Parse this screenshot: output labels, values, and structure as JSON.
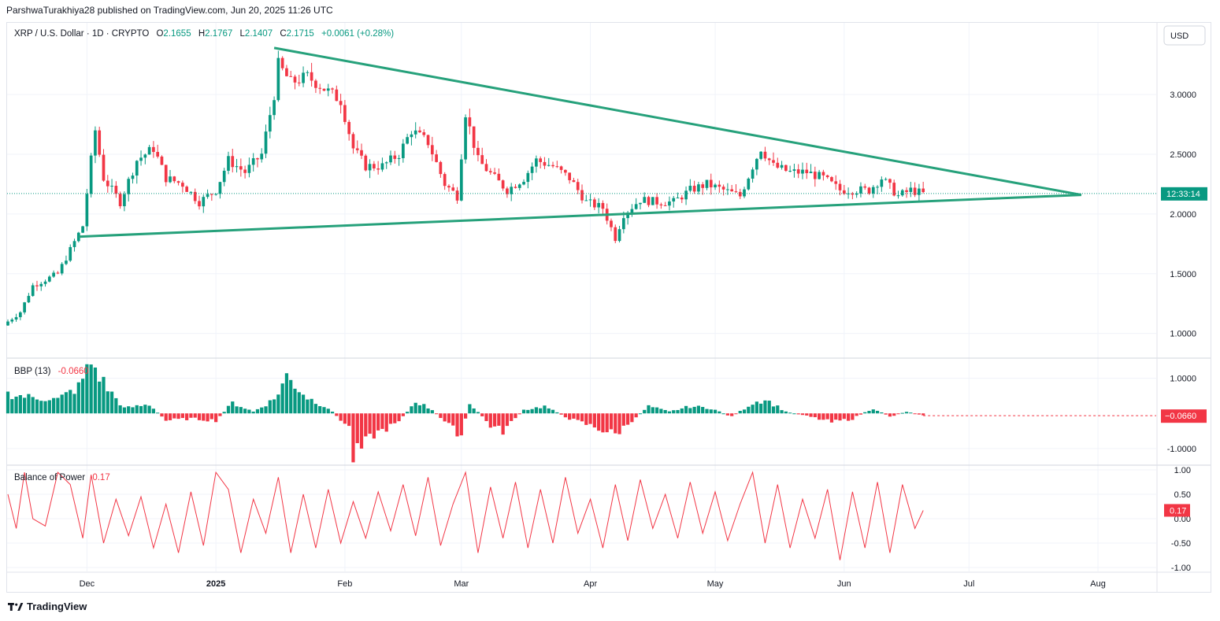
{
  "header": {
    "publisher_line": "ParshwaTurakhiya28 published on TradingView.com, Jun 20, 2025 11:26 UTC"
  },
  "legend": {
    "symbol": "XRP / U.S. Dollar · 1D · CRYPTO",
    "o_label": "O",
    "o_value": "2.1655",
    "h_label": "H",
    "h_value": "2.1767",
    "l_label": "L",
    "l_value": "2.1407",
    "c_label": "C",
    "c_value": "2.1715",
    "change": "+0.0061 (+0.28%)"
  },
  "currency_button": "USD",
  "countdown_label": "12:33:14",
  "bbp": {
    "title": "BBP (13)",
    "value": "-0.0660",
    "badge": "−0.0660"
  },
  "bop": {
    "title": "Balance of Power",
    "value": "0.17",
    "badge": "0.17"
  },
  "footer": {
    "brand": "TradingView"
  },
  "colors": {
    "up": "#089981",
    "down": "#f23645",
    "trend": "#26a17b",
    "bop_line": "#f23645",
    "price_line": "#089981"
  },
  "chart_data": [
    {
      "type": "candlestick",
      "title": "XRP / U.S. Dollar · 1D · CRYPTO",
      "x_range": [
        "2024-11-12",
        "2025-08-15"
      ],
      "x_tick_labels": [
        "Dec",
        "2025",
        "Feb",
        "Mar",
        "Apr",
        "May",
        "Jun",
        "Jul",
        "Aug"
      ],
      "x_tick_dates": [
        "2024-12-01",
        "2025-01-01",
        "2025-02-01",
        "2025-03-01",
        "2025-04-01",
        "2025-05-01",
        "2025-06-01",
        "2025-07-01",
        "2025-08-01"
      ],
      "y_ticks": [
        "1.0000",
        "1.5000",
        "2.0000",
        "2.5000",
        "3.0000"
      ],
      "ylim": [
        0.8,
        3.6
      ],
      "last_price": 2.1715,
      "grid": true,
      "candles_close_approx": [
        {
          "x": "2024-11-12",
          "close": 1.1
        },
        {
          "x": "2024-11-15",
          "close": 1.18
        },
        {
          "x": "2024-11-18",
          "close": 1.4
        },
        {
          "x": "2024-11-21",
          "close": 1.45
        },
        {
          "x": "2024-11-24",
          "close": 1.5
        },
        {
          "x": "2024-11-27",
          "close": 1.7
        },
        {
          "x": "2024-11-30",
          "close": 1.9
        },
        {
          "x": "2024-12-02",
          "close": 2.45
        },
        {
          "x": "2024-12-03",
          "close": 2.7
        },
        {
          "x": "2024-12-05",
          "close": 2.3
        },
        {
          "x": "2024-12-09",
          "close": 2.1
        },
        {
          "x": "2024-12-13",
          "close": 2.45
        },
        {
          "x": "2024-12-17",
          "close": 2.55
        },
        {
          "x": "2024-12-20",
          "close": 2.3
        },
        {
          "x": "2024-12-24",
          "close": 2.25
        },
        {
          "x": "2024-12-28",
          "close": 2.1
        },
        {
          "x": "2025-01-01",
          "close": 2.2
        },
        {
          "x": "2025-01-04",
          "close": 2.45
        },
        {
          "x": "2025-01-08",
          "close": 2.35
        },
        {
          "x": "2025-01-12",
          "close": 2.5
        },
        {
          "x": "2025-01-15",
          "close": 3.0
        },
        {
          "x": "2025-01-16",
          "close": 3.25
        },
        {
          "x": "2025-01-19",
          "close": 3.1
        },
        {
          "x": "2025-01-23",
          "close": 3.15
        },
        {
          "x": "2025-01-27",
          "close": 3.05
        },
        {
          "x": "2025-01-31",
          "close": 2.95
        },
        {
          "x": "2025-02-03",
          "close": 2.55
        },
        {
          "x": "2025-02-06",
          "close": 2.4
        },
        {
          "x": "2025-02-10",
          "close": 2.4
        },
        {
          "x": "2025-02-14",
          "close": 2.5
        },
        {
          "x": "2025-02-17",
          "close": 2.7
        },
        {
          "x": "2025-02-21",
          "close": 2.6
        },
        {
          "x": "2025-02-25",
          "close": 2.25
        },
        {
          "x": "2025-02-28",
          "close": 2.15
        },
        {
          "x": "2025-03-02",
          "close": 2.85
        },
        {
          "x": "2025-03-05",
          "close": 2.45
        },
        {
          "x": "2025-03-09",
          "close": 2.3
        },
        {
          "x": "2025-03-12",
          "close": 2.2
        },
        {
          "x": "2025-03-16",
          "close": 2.3
        },
        {
          "x": "2025-03-19",
          "close": 2.45
        },
        {
          "x": "2025-03-23",
          "close": 2.4
        },
        {
          "x": "2025-03-27",
          "close": 2.3
        },
        {
          "x": "2025-03-31",
          "close": 2.1
        },
        {
          "x": "2025-04-04",
          "close": 2.05
        },
        {
          "x": "2025-04-07",
          "close": 1.8
        },
        {
          "x": "2025-04-09",
          "close": 2.0
        },
        {
          "x": "2025-04-13",
          "close": 2.12
        },
        {
          "x": "2025-04-17",
          "close": 2.1
        },
        {
          "x": "2025-04-21",
          "close": 2.1
        },
        {
          "x": "2025-04-25",
          "close": 2.2
        },
        {
          "x": "2025-04-29",
          "close": 2.25
        },
        {
          "x": "2025-05-03",
          "close": 2.2
        },
        {
          "x": "2025-05-07",
          "close": 2.15
        },
        {
          "x": "2025-05-10",
          "close": 2.4
        },
        {
          "x": "2025-05-12",
          "close": 2.55
        },
        {
          "x": "2025-05-15",
          "close": 2.4
        },
        {
          "x": "2025-05-19",
          "close": 2.35
        },
        {
          "x": "2025-05-23",
          "close": 2.35
        },
        {
          "x": "2025-05-27",
          "close": 2.3
        },
        {
          "x": "2025-05-31",
          "close": 2.2
        },
        {
          "x": "2025-06-04",
          "close": 2.2
        },
        {
          "x": "2025-06-07",
          "close": 2.2
        },
        {
          "x": "2025-06-10",
          "close": 2.3
        },
        {
          "x": "2025-06-14",
          "close": 2.15
        },
        {
          "x": "2025-06-17",
          "close": 2.2
        },
        {
          "x": "2025-06-20",
          "close": 2.17
        }
      ],
      "trendlines": [
        {
          "name": "resistance",
          "from": {
            "x": "2025-01-15",
            "y": 3.39
          },
          "to": {
            "x": "2025-07-28",
            "y": 2.16
          }
        },
        {
          "name": "support",
          "from": {
            "x": "2024-11-29",
            "y": 1.81
          },
          "to": {
            "x": "2025-07-28",
            "y": 2.16
          }
        }
      ]
    },
    {
      "type": "bar",
      "title": "BBP (13)",
      "y_ticks": [
        "1.0000",
        "-1.0000"
      ],
      "ylim": [
        -1.45,
        1.55
      ],
      "last_value": -0.066,
      "values_approx": [
        {
          "x": "2024-11-12",
          "y": 0.55
        },
        {
          "x": "2024-11-18",
          "y": 0.45
        },
        {
          "x": "2024-11-24",
          "y": 0.4
        },
        {
          "x": "2024-11-29",
          "y": 0.75
        },
        {
          "x": "2024-12-02",
          "y": 1.45
        },
        {
          "x": "2024-12-06",
          "y": 0.7
        },
        {
          "x": "2024-12-10",
          "y": 0.15
        },
        {
          "x": "2024-12-16",
          "y": 0.25
        },
        {
          "x": "2024-12-20",
          "y": -0.2
        },
        {
          "x": "2024-12-26",
          "y": -0.15
        },
        {
          "x": "2025-01-01",
          "y": -0.2
        },
        {
          "x": "2025-01-05",
          "y": 0.3
        },
        {
          "x": "2025-01-10",
          "y": 0.05
        },
        {
          "x": "2025-01-15",
          "y": 0.4
        },
        {
          "x": "2025-01-18",
          "y": 1.05
        },
        {
          "x": "2025-01-23",
          "y": 0.45
        },
        {
          "x": "2025-01-28",
          "y": 0.15
        },
        {
          "x": "2025-02-02",
          "y": -0.4
        },
        {
          "x": "2025-02-03",
          "y": -1.25
        },
        {
          "x": "2025-02-08",
          "y": -0.6
        },
        {
          "x": "2025-02-14",
          "y": -0.25
        },
        {
          "x": "2025-02-18",
          "y": 0.35
        },
        {
          "x": "2025-02-22",
          "y": 0.1
        },
        {
          "x": "2025-02-27",
          "y": -0.45
        },
        {
          "x": "2025-03-01",
          "y": -0.6
        },
        {
          "x": "2025-03-03",
          "y": 0.3
        },
        {
          "x": "2025-03-08",
          "y": -0.35
        },
        {
          "x": "2025-03-11",
          "y": -0.5
        },
        {
          "x": "2025-03-16",
          "y": 0.1
        },
        {
          "x": "2025-03-21",
          "y": 0.2
        },
        {
          "x": "2025-03-27",
          "y": -0.15
        },
        {
          "x": "2025-04-01",
          "y": -0.35
        },
        {
          "x": "2025-04-07",
          "y": -0.6
        },
        {
          "x": "2025-04-10",
          "y": -0.3
        },
        {
          "x": "2025-04-15",
          "y": 0.2
        },
        {
          "x": "2025-04-20",
          "y": 0.05
        },
        {
          "x": "2025-04-25",
          "y": 0.2
        },
        {
          "x": "2025-04-30",
          "y": 0.15
        },
        {
          "x": "2025-05-05",
          "y": -0.1
        },
        {
          "x": "2025-05-10",
          "y": 0.3
        },
        {
          "x": "2025-05-13",
          "y": 0.4
        },
        {
          "x": "2025-05-18",
          "y": 0.05
        },
        {
          "x": "2025-05-24",
          "y": -0.1
        },
        {
          "x": "2025-05-29",
          "y": -0.25
        },
        {
          "x": "2025-06-03",
          "y": -0.15
        },
        {
          "x": "2025-06-08",
          "y": 0.15
        },
        {
          "x": "2025-06-12",
          "y": -0.1
        },
        {
          "x": "2025-06-16",
          "y": 0.05
        },
        {
          "x": "2025-06-20",
          "y": -0.07
        }
      ]
    },
    {
      "type": "line",
      "title": "Balance of Power",
      "y_ticks": [
        "1.00",
        "0.50",
        "0.00",
        "-0.50",
        "-1.00"
      ],
      "ylim": [
        -1.08,
        1.08
      ],
      "last_value": 0.17,
      "values_approx": [
        {
          "x": "2024-11-12",
          "y": 0.5
        },
        {
          "x": "2024-11-14",
          "y": -0.2
        },
        {
          "x": "2024-11-16",
          "y": 0.95
        },
        {
          "x": "2024-11-18",
          "y": 0.0
        },
        {
          "x": "2024-11-21",
          "y": -0.15
        },
        {
          "x": "2024-11-24",
          "y": 0.95
        },
        {
          "x": "2024-11-27",
          "y": 0.7
        },
        {
          "x": "2024-11-30",
          "y": -0.4
        },
        {
          "x": "2024-12-02",
          "y": 0.9
        },
        {
          "x": "2024-12-05",
          "y": -0.5
        },
        {
          "x": "2024-12-08",
          "y": 0.4
        },
        {
          "x": "2024-12-11",
          "y": -0.35
        },
        {
          "x": "2024-12-14",
          "y": 0.45
        },
        {
          "x": "2024-12-17",
          "y": -0.6
        },
        {
          "x": "2024-12-20",
          "y": 0.3
        },
        {
          "x": "2024-12-23",
          "y": -0.7
        },
        {
          "x": "2024-12-26",
          "y": 0.55
        },
        {
          "x": "2024-12-29",
          "y": -0.55
        },
        {
          "x": "2025-01-01",
          "y": 0.95
        },
        {
          "x": "2025-01-04",
          "y": 0.6
        },
        {
          "x": "2025-01-07",
          "y": -0.7
        },
        {
          "x": "2025-01-10",
          "y": 0.4
        },
        {
          "x": "2025-01-13",
          "y": -0.3
        },
        {
          "x": "2025-01-16",
          "y": 0.85
        },
        {
          "x": "2025-01-19",
          "y": -0.7
        },
        {
          "x": "2025-01-22",
          "y": 0.5
        },
        {
          "x": "2025-01-25",
          "y": -0.6
        },
        {
          "x": "2025-01-28",
          "y": 0.6
        },
        {
          "x": "2025-01-31",
          "y": -0.5
        },
        {
          "x": "2025-02-03",
          "y": 0.35
        },
        {
          "x": "2025-02-06",
          "y": -0.4
        },
        {
          "x": "2025-02-09",
          "y": 0.55
        },
        {
          "x": "2025-02-12",
          "y": -0.25
        },
        {
          "x": "2025-02-15",
          "y": 0.7
        },
        {
          "x": "2025-02-18",
          "y": -0.35
        },
        {
          "x": "2025-02-21",
          "y": 0.85
        },
        {
          "x": "2025-02-24",
          "y": -0.55
        },
        {
          "x": "2025-02-27",
          "y": 0.3
        },
        {
          "x": "2025-03-02",
          "y": 0.95
        },
        {
          "x": "2025-03-05",
          "y": -0.7
        },
        {
          "x": "2025-03-08",
          "y": 0.65
        },
        {
          "x": "2025-03-11",
          "y": -0.4
        },
        {
          "x": "2025-03-14",
          "y": 0.75
        },
        {
          "x": "2025-03-17",
          "y": -0.6
        },
        {
          "x": "2025-03-20",
          "y": 0.6
        },
        {
          "x": "2025-03-23",
          "y": -0.5
        },
        {
          "x": "2025-03-26",
          "y": 0.85
        },
        {
          "x": "2025-03-29",
          "y": -0.3
        },
        {
          "x": "2025-04-01",
          "y": 0.4
        },
        {
          "x": "2025-04-04",
          "y": -0.6
        },
        {
          "x": "2025-04-07",
          "y": 0.7
        },
        {
          "x": "2025-04-10",
          "y": -0.45
        },
        {
          "x": "2025-04-13",
          "y": 0.8
        },
        {
          "x": "2025-04-16",
          "y": -0.2
        },
        {
          "x": "2025-04-19",
          "y": 0.5
        },
        {
          "x": "2025-04-22",
          "y": -0.4
        },
        {
          "x": "2025-04-25",
          "y": 0.75
        },
        {
          "x": "2025-04-28",
          "y": -0.3
        },
        {
          "x": "2025-05-01",
          "y": 0.55
        },
        {
          "x": "2025-05-04",
          "y": -0.45
        },
        {
          "x": "2025-05-07",
          "y": 0.3
        },
        {
          "x": "2025-05-10",
          "y": 0.95
        },
        {
          "x": "2025-05-13",
          "y": -0.5
        },
        {
          "x": "2025-05-16",
          "y": 0.7
        },
        {
          "x": "2025-05-19",
          "y": -0.6
        },
        {
          "x": "2025-05-22",
          "y": 0.4
        },
        {
          "x": "2025-05-25",
          "y": -0.4
        },
        {
          "x": "2025-05-28",
          "y": 0.6
        },
        {
          "x": "2025-05-31",
          "y": -0.85
        },
        {
          "x": "2025-06-03",
          "y": 0.55
        },
        {
          "x": "2025-06-06",
          "y": -0.6
        },
        {
          "x": "2025-06-09",
          "y": 0.75
        },
        {
          "x": "2025-06-12",
          "y": -0.7
        },
        {
          "x": "2025-06-15",
          "y": 0.7
        },
        {
          "x": "2025-06-18",
          "y": -0.2
        },
        {
          "x": "2025-06-20",
          "y": 0.17
        }
      ]
    }
  ]
}
